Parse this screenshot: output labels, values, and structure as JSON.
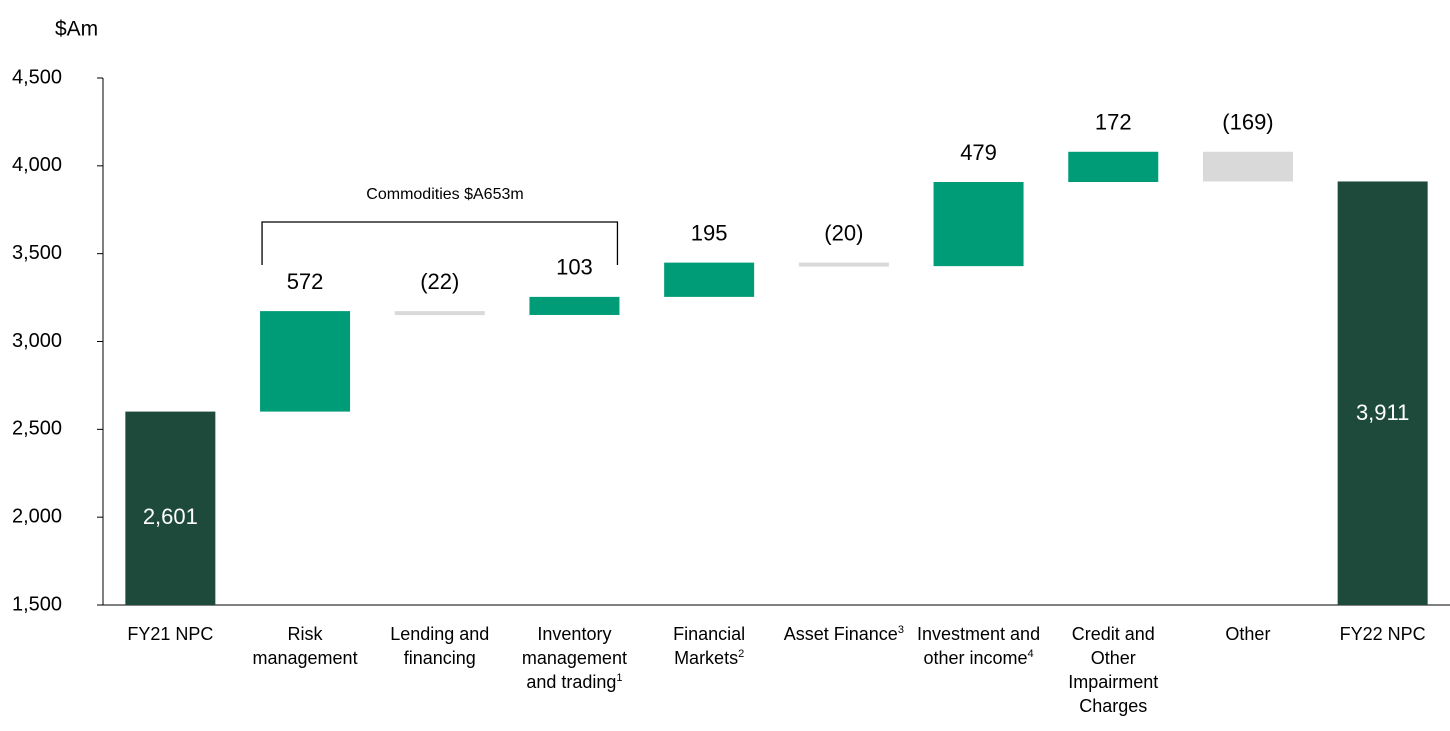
{
  "chart_data": {
    "type": "waterfall",
    "y_label": "$Am",
    "annotation": "Commodities $A653m",
    "categories": [
      "FY21 NPC",
      "Risk management",
      "Lending and financing",
      "Inventory management and trading",
      "Financial Markets",
      "Asset Finance",
      "Investment and other income",
      "Credit and Other Impairment Charges",
      "Other",
      "FY22 NPC"
    ],
    "footnote_marks": [
      null,
      null,
      null,
      "1",
      "2",
      "3",
      "4",
      null,
      null,
      null
    ],
    "measures": [
      "total",
      "relative",
      "relative",
      "relative",
      "relative",
      "relative",
      "relative",
      "relative",
      "relative",
      "total"
    ],
    "values": [
      2601,
      572,
      -22,
      103,
      195,
      -20,
      479,
      172,
      -169,
      3911
    ],
    "value_labels": [
      "2,601",
      "572",
      "(22)",
      "103",
      "195",
      "(20)",
      "479",
      "172",
      "(169)",
      "3,911"
    ],
    "colors": {
      "total": "#1e4a3c",
      "increase": "#009b77",
      "decrease": "#d9d9d9"
    },
    "ylim": [
      1500,
      4500
    ],
    "yticks": [
      {
        "value": 1500,
        "label": "1,500"
      },
      {
        "value": 2000,
        "label": "2,000"
      },
      {
        "value": 2500,
        "label": "2,500"
      },
      {
        "value": 3000,
        "label": "3,000"
      },
      {
        "value": 3500,
        "label": "3,500"
      },
      {
        "value": 4000,
        "label": "4,000"
      },
      {
        "value": 4500,
        "label": "4,500"
      }
    ],
    "grid": false
  }
}
